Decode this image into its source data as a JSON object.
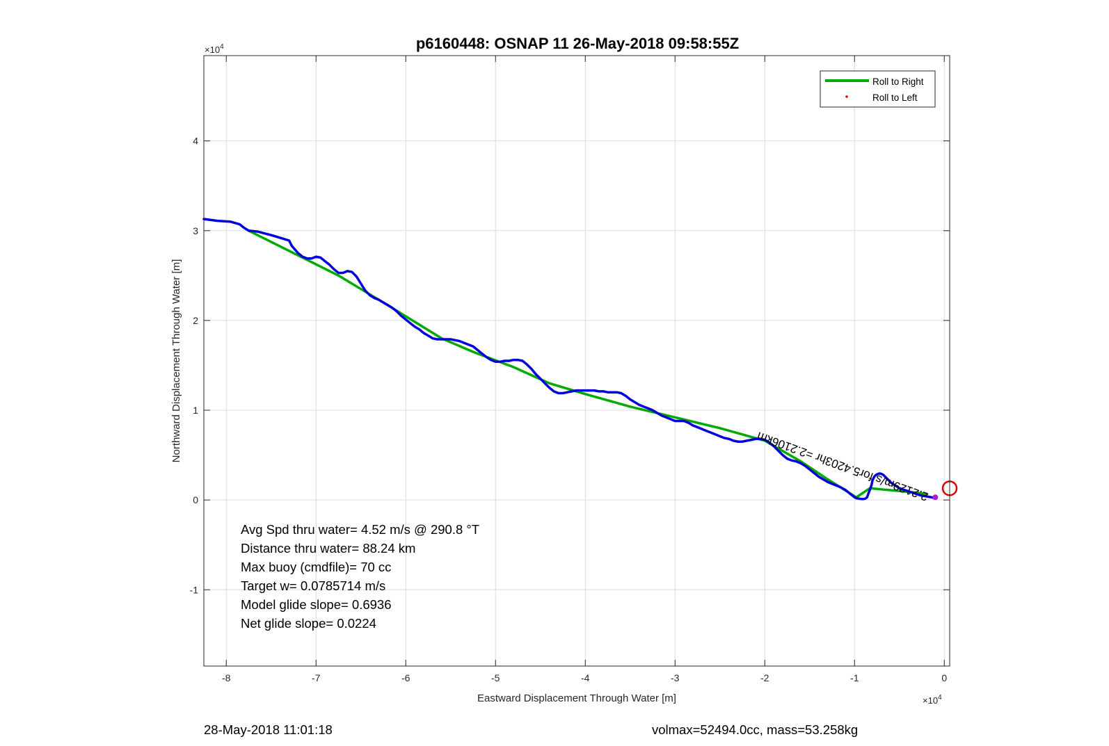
{
  "chart_data": {
    "type": "line",
    "title": "p6160448: OSNAP 11 26-May-2018 09:58:55Z",
    "xlabel": "Eastward Displacement Through Water [m]",
    "ylabel": "Northward Displacement Through Water [m]",
    "x_exponent": "×10",
    "x_exponent_power": "4",
    "y_exponent": "×10",
    "y_exponent_power": "4",
    "xlim": [
      -82500,
      600
    ],
    "ylim": [
      -18500,
      49500
    ],
    "xticks": [
      -80000,
      -70000,
      -60000,
      -50000,
      -40000,
      -30000,
      -20000,
      -10000,
      0
    ],
    "xticklabels": [
      "-8",
      "-7",
      "-6",
      "-5",
      "-4",
      "-3",
      "-2",
      "-1",
      "0"
    ],
    "yticks": [
      -10000,
      0,
      10000,
      20000,
      30000,
      40000
    ],
    "yticklabels": [
      "-1",
      "0",
      "1",
      "2",
      "3",
      "4"
    ],
    "grid": true,
    "legend_position": "top-right",
    "legend": [
      {
        "label": "Roll to Right",
        "color": "#00aa00",
        "style": "line"
      },
      {
        "label": "Roll to Left",
        "color": "#dd0000",
        "style": "dot"
      }
    ],
    "series": [
      {
        "name": "Roll to Right",
        "color": "#00aa00",
        "x": [
          -77500,
          -72500,
          -67500,
          -62500,
          -56000,
          -52500,
          -48000,
          -44000,
          -40000,
          -35000,
          -30000,
          -25000,
          -20000,
          -16000,
          -13000,
          -9800,
          -8300,
          -5000,
          -2000
        ],
        "y": [
          30000,
          27500,
          25000,
          22000,
          18000,
          16500,
          14800,
          13000,
          11800,
          10400,
          9200,
          8000,
          6600,
          4300,
          2300,
          300,
          1300,
          1000,
          700
        ]
      },
      {
        "name": "",
        "color": "#0000dd",
        "x": [
          -82500,
          -81000,
          -79500,
          -78500,
          -78000,
          -77500,
          -76500,
          -75000,
          -74000,
          -73000,
          -72700,
          -72000,
          -71500,
          -71000,
          -70500,
          -70000,
          -69500,
          -69000,
          -68500,
          -68000,
          -67500,
          -67000,
          -66500,
          -66000,
          -65500,
          -65000,
          -64500,
          -64000,
          -63500,
          -63000,
          -62500,
          -62000,
          -61500,
          -61000,
          -60500,
          -60000,
          -59500,
          -59000,
          -58500,
          -58000,
          -57500,
          -57000,
          -56500,
          -56000,
          -55500,
          -55000,
          -54500,
          -54000,
          -53500,
          -53000,
          -52500,
          -52000,
          -51500,
          -51000,
          -50500,
          -50000,
          -49500,
          -49000,
          -48500,
          -48000,
          -47500,
          -47000,
          -46500,
          -46000,
          -45500,
          -45000,
          -44500,
          -44000,
          -43500,
          -43000,
          -42500,
          -42000,
          -41500,
          -41000,
          -40500,
          -40000,
          -39500,
          -39000,
          -38500,
          -38000,
          -37500,
          -37000,
          -36500,
          -36000,
          -35500,
          -35000,
          -34500,
          -34000,
          -33500,
          -33000,
          -32500,
          -32000,
          -31500,
          -31000,
          -30500,
          -30000,
          -29500,
          -29000,
          -28500,
          -28000,
          -27500,
          -27000,
          -26500,
          -26000,
          -25500,
          -25000,
          -24500,
          -24000,
          -23500,
          -23000,
          -22500,
          -22000,
          -21500,
          -21000,
          -20500,
          -20000,
          -19500,
          -19000,
          -18500,
          -18000,
          -17500,
          -17000,
          -16500,
          -16000,
          -15500,
          -15000,
          -14500,
          -14000,
          -13500,
          -13000,
          -12500,
          -12000,
          -11500,
          -11000,
          -10500,
          -10000,
          -9800,
          -9500,
          -9200,
          -9000,
          -8800,
          -8600,
          -8500,
          -8300,
          -8100,
          -8000,
          -7800,
          -7600,
          -7400,
          -7200,
          -7000,
          -6800,
          -6500,
          -6200,
          -5900,
          -5600,
          -5300,
          -5000,
          -4700,
          -4400,
          -4100,
          -3800,
          -3500,
          -3200,
          -2900,
          -2600,
          -2300,
          -2000,
          -1700,
          -1400,
          -1200
        ],
        "y": [
          31300,
          31100,
          31000,
          30700,
          30300,
          30000,
          29900,
          29500,
          29200,
          28900,
          28300,
          27500,
          27100,
          26900,
          26900,
          27100,
          27000,
          26600,
          26200,
          25700,
          25300,
          25300,
          25500,
          25400,
          24900,
          24100,
          23300,
          22800,
          22500,
          22300,
          22000,
          21700,
          21400,
          21000,
          20500,
          20100,
          19700,
          19300,
          19000,
          18600,
          18300,
          18000,
          17900,
          17900,
          17900,
          17900,
          17800,
          17700,
          17500,
          17300,
          17100,
          16700,
          16300,
          15900,
          15600,
          15400,
          15400,
          15500,
          15500,
          15600,
          15600,
          15500,
          15100,
          14600,
          14000,
          13500,
          13000,
          12500,
          12100,
          11900,
          11900,
          12000,
          12100,
          12200,
          12200,
          12200,
          12200,
          12200,
          12100,
          12100,
          12000,
          12000,
          12000,
          11900,
          11600,
          11200,
          10900,
          10600,
          10400,
          10200,
          10000,
          9700,
          9400,
          9200,
          9000,
          8800,
          8800,
          8800,
          8600,
          8300,
          8100,
          7900,
          7700,
          7500,
          7300,
          7100,
          6900,
          6800,
          6600,
          6500,
          6500,
          6600,
          6700,
          6800,
          6800,
          6700,
          6400,
          6000,
          5500,
          5000,
          4600,
          4400,
          4300,
          4100,
          3800,
          3400,
          3000,
          2600,
          2300,
          2000,
          1800,
          1600,
          1400,
          1100,
          700,
          300,
          200,
          150,
          100,
          100,
          150,
          300,
          600,
          1100,
          1700,
          2200,
          2600,
          2800,
          2900,
          2950,
          2900,
          2800,
          2500,
          2200,
          1900,
          1700,
          1500,
          1300,
          1200,
          1100,
          1000,
          900,
          800,
          700,
          600,
          500,
          450,
          400,
          350,
          300,
          250
        ]
      }
    ],
    "markers": [
      {
        "name": "end-circle",
        "x": 600,
        "y": 1300,
        "color": "#dd0000"
      }
    ],
    "path_label": "2.2129m/s for5.4203hr =2.2106km"
  },
  "annotations": [
    "Avg Spd thru water=  4.52 m/s @ 290.8 °T",
    "Distance thru water= 88.24 km",
    "Max buoy (cmdfile)= 70 cc",
    "Target w= 0.0785714 m/s",
    "Model glide slope= 0.6936",
    "Net glide slope= 0.0224"
  ],
  "footer": {
    "left": "28-May-2018 11:01:18",
    "right": "volmax=52494.0cc, mass=53.258kg"
  }
}
